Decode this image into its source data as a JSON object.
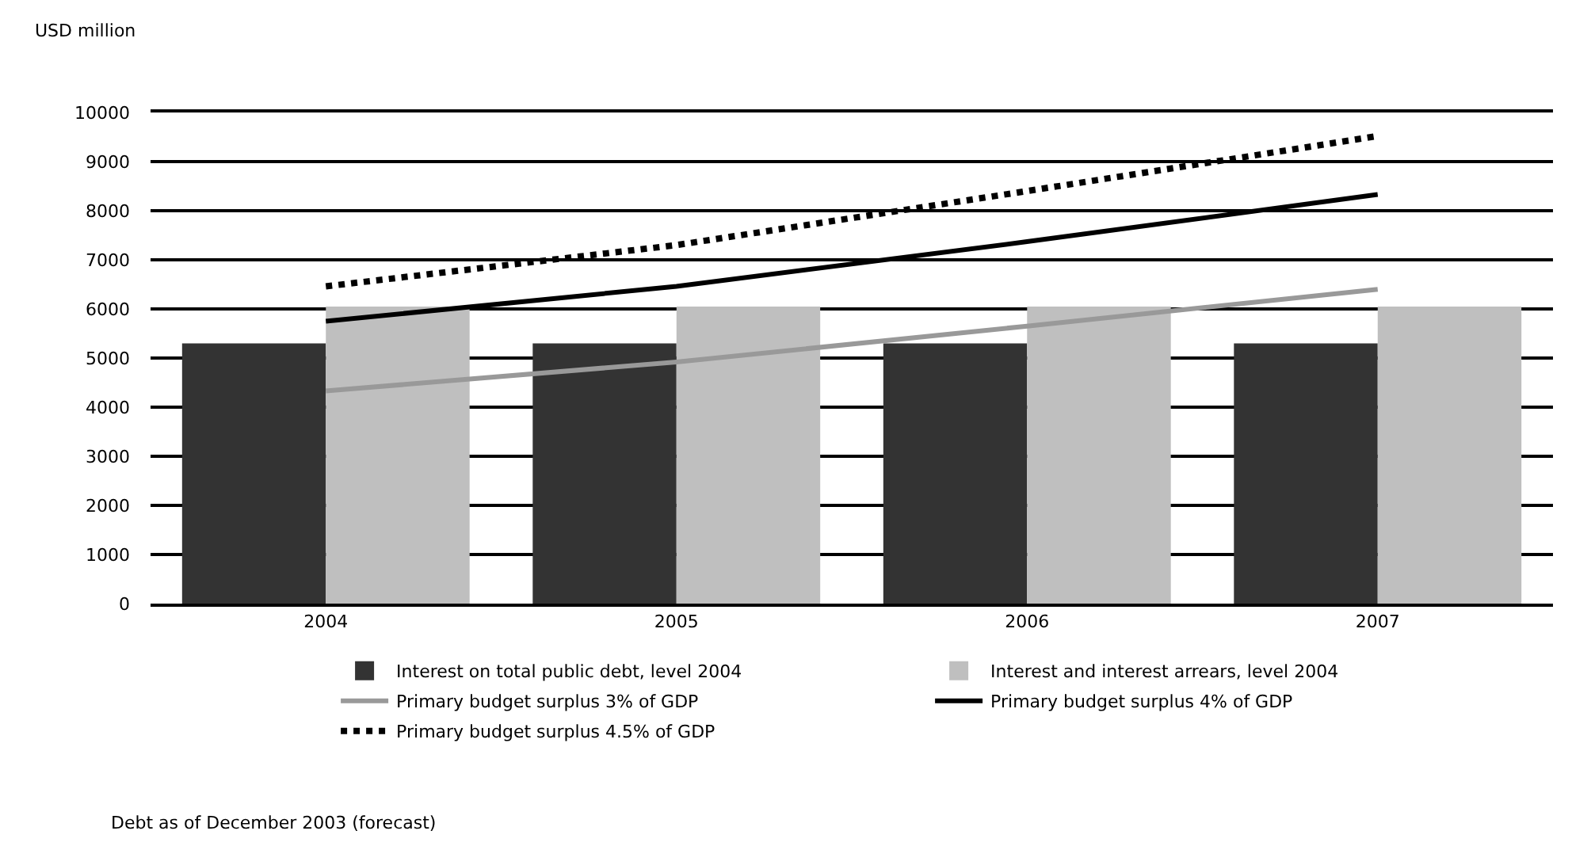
{
  "chart_data": {
    "type": "bar",
    "ylabel": "USD million",
    "categories": [
      "2004",
      "2005",
      "2006",
      "2007"
    ],
    "series": [
      {
        "name": "Interest on total public debt, level 2004",
        "color": "#333333",
        "values": [
          5300,
          5300,
          5300,
          5300
        ]
      },
      {
        "name": "Interest and interest arrears, level 2004",
        "color": "#bfbfbf",
        "values": [
          6050,
          6050,
          6050,
          6050
        ]
      },
      {
        "name": "Primary budget surplus 3% of GDP",
        "type": "line",
        "color": "#999999",
        "line_style": "solid",
        "values": [
          4330,
          4920,
          5650,
          6400
        ]
      },
      {
        "name": "Primary budget surplus 4% of GDP",
        "type": "line",
        "color": "#000000",
        "line_style": "solid",
        "values": [
          5750,
          6460,
          7370,
          8330
        ]
      },
      {
        "name": "Primary budget surplus 4.5% of GDP",
        "type": "line",
        "color": "#000000",
        "line_style": "dotted",
        "values": [
          6460,
          7300,
          8400,
          9520
        ]
      }
    ],
    "ylim": [
      0,
      10000
    ],
    "yticks": [
      0,
      1000,
      2000,
      3000,
      4000,
      5000,
      6000,
      7000,
      8000,
      9000,
      10000
    ],
    "grid": "y",
    "legend": "bottom",
    "marker": "none",
    "annotations": [
      "Debt as of December 2003 (forecast)"
    ]
  }
}
